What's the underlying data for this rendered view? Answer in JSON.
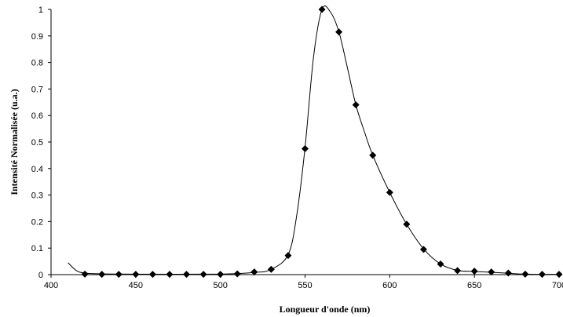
{
  "chart_data": {
    "type": "scatter",
    "title": "",
    "xlabel": "Longueur d'onde (nm)",
    "ylabel": "Intensité Normalisée (u.a.)",
    "xlim": [
      400,
      700
    ],
    "ylim": [
      0,
      1
    ],
    "x_ticks": [
      "400",
      "450",
      "500",
      "550",
      "600",
      "650",
      "700"
    ],
    "y_ticks": [
      "0",
      "0.1",
      "0.2",
      "0.3",
      "0.4",
      "0.5",
      "0.6",
      "0.7",
      "0.8",
      "0.9",
      "1"
    ],
    "grid": false,
    "legend": "none",
    "marker": "diamond",
    "marker_color": "#000000",
    "line_color": "#000000",
    "series": [
      {
        "points": [
          {
            "x": 420,
            "y": 0.002
          },
          {
            "x": 430,
            "y": 0.001
          },
          {
            "x": 440,
            "y": 0.001
          },
          {
            "x": 450,
            "y": 0.001
          },
          {
            "x": 460,
            "y": 0.001
          },
          {
            "x": 470,
            "y": 0.001
          },
          {
            "x": 480,
            "y": 0.001
          },
          {
            "x": 490,
            "y": 0.001
          },
          {
            "x": 500,
            "y": 0.001
          },
          {
            "x": 510,
            "y": 0.003
          },
          {
            "x": 520,
            "y": 0.01
          },
          {
            "x": 530,
            "y": 0.02
          },
          {
            "x": 540,
            "y": 0.072
          },
          {
            "x": 550,
            "y": 0.475
          },
          {
            "x": 560,
            "y": 1.0
          },
          {
            "x": 570,
            "y": 0.915
          },
          {
            "x": 580,
            "y": 0.64
          },
          {
            "x": 590,
            "y": 0.45
          },
          {
            "x": 600,
            "y": 0.31
          },
          {
            "x": 610,
            "y": 0.19
          },
          {
            "x": 620,
            "y": 0.095
          },
          {
            "x": 630,
            "y": 0.04
          },
          {
            "x": 640,
            "y": 0.015
          },
          {
            "x": 650,
            "y": 0.013
          },
          {
            "x": 660,
            "y": 0.01
          },
          {
            "x": 670,
            "y": 0.006
          },
          {
            "x": 680,
            "y": 0.002
          },
          {
            "x": 690,
            "y": 0.001
          },
          {
            "x": 700,
            "y": 0.001
          }
        ],
        "curve": [
          {
            "x": 410,
            "y": 0.045
          },
          {
            "x": 415,
            "y": 0.015
          },
          {
            "x": 420,
            "y": 0.006
          },
          {
            "x": 430,
            "y": 0.003
          },
          {
            "x": 450,
            "y": 0.002
          },
          {
            "x": 500,
            "y": 0.002
          },
          {
            "x": 520,
            "y": 0.008
          },
          {
            "x": 530,
            "y": 0.02
          },
          {
            "x": 540,
            "y": 0.075
          },
          {
            "x": 545,
            "y": 0.22
          },
          {
            "x": 550,
            "y": 0.48
          },
          {
            "x": 555,
            "y": 0.82
          },
          {
            "x": 560,
            "y": 1.0
          },
          {
            "x": 565,
            "y": 0.99
          },
          {
            "x": 570,
            "y": 0.915
          },
          {
            "x": 575,
            "y": 0.78
          },
          {
            "x": 580,
            "y": 0.64
          },
          {
            "x": 585,
            "y": 0.54
          },
          {
            "x": 590,
            "y": 0.45
          },
          {
            "x": 600,
            "y": 0.31
          },
          {
            "x": 610,
            "y": 0.19
          },
          {
            "x": 620,
            "y": 0.097
          },
          {
            "x": 630,
            "y": 0.04
          },
          {
            "x": 640,
            "y": 0.016
          },
          {
            "x": 650,
            "y": 0.012
          },
          {
            "x": 660,
            "y": 0.009
          },
          {
            "x": 670,
            "y": 0.005
          },
          {
            "x": 680,
            "y": 0.002
          },
          {
            "x": 700,
            "y": 0.001
          }
        ]
      }
    ]
  }
}
